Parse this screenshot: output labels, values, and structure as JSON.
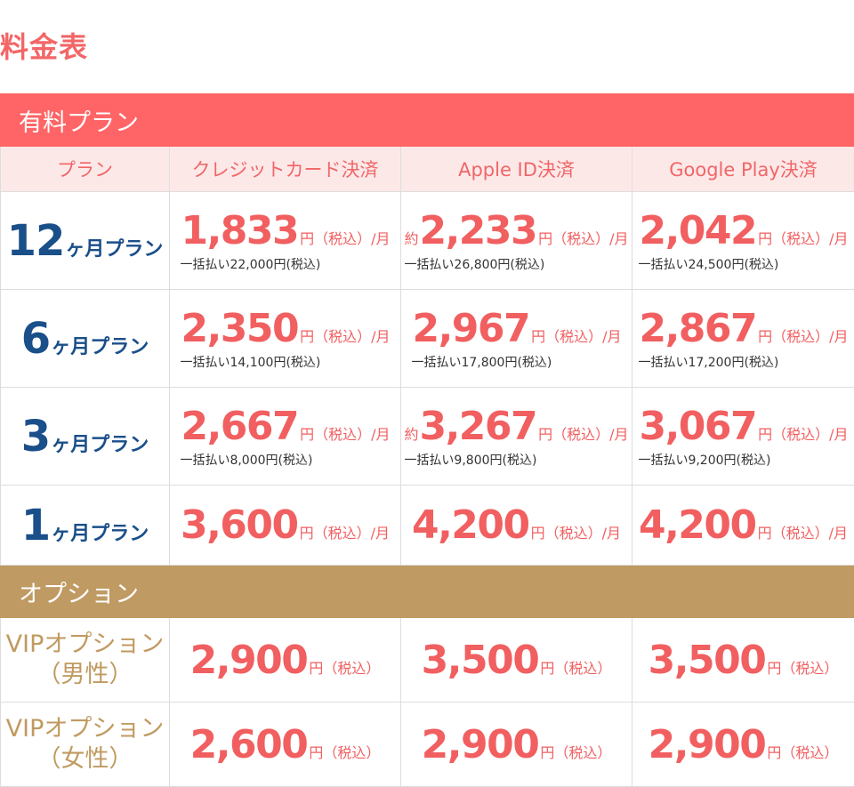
{
  "page": {
    "title": "料金表"
  },
  "paid_section": {
    "label": "有料プラン"
  },
  "columns": [
    "プラン",
    "クレジットカード決済",
    "Apple ID決済",
    "Google Play決済"
  ],
  "plans": [
    {
      "number": "12",
      "unit": "ヶ月プラン",
      "prices": [
        {
          "approx": "",
          "amount": "1,833",
          "unit": "円（税込）/月",
          "lump": "一括払い22,000円(税込)"
        },
        {
          "approx": "約",
          "amount": "2,233",
          "unit": "円（税込）/月",
          "lump": "一括払い26,800円(税込)"
        },
        {
          "approx": "",
          "amount": "2,042",
          "unit": "円（税込）/月",
          "lump": "一括払い24,500円(税込)"
        }
      ]
    },
    {
      "number": "6",
      "unit": "ヶ月プラン",
      "prices": [
        {
          "approx": "",
          "amount": "2,350",
          "unit": "円（税込）/月",
          "lump": "一括払い14,100円(税込)"
        },
        {
          "approx": "",
          "amount": "2,967",
          "unit": "円（税込）/月",
          "lump": "一括払い17,800円(税込)"
        },
        {
          "approx": "",
          "amount": "2,867",
          "unit": "円（税込）/月",
          "lump": "一括払い17,200円(税込)"
        }
      ]
    },
    {
      "number": "3",
      "unit": "ヶ月プラン",
      "prices": [
        {
          "approx": "",
          "amount": "2,667",
          "unit": "円（税込）/月",
          "lump": "一括払い8,000円(税込)"
        },
        {
          "approx": "約",
          "amount": "3,267",
          "unit": "円（税込）/月",
          "lump": "一括払い9,800円(税込)"
        },
        {
          "approx": "",
          "amount": "3,067",
          "unit": "円（税込）/月",
          "lump": "一括払い9,200円(税込)"
        }
      ]
    },
    {
      "number": "1",
      "unit": "ヶ月プラン",
      "prices": [
        {
          "approx": "",
          "amount": "3,600",
          "unit": "円（税込）/月",
          "lump": ""
        },
        {
          "approx": "",
          "amount": "4,200",
          "unit": "円（税込）/月",
          "lump": ""
        },
        {
          "approx": "",
          "amount": "4,200",
          "unit": "円（税込）/月",
          "lump": ""
        }
      ]
    }
  ],
  "option_section": {
    "label": "オプション"
  },
  "options": [
    {
      "name_line1": "VIPオプション",
      "name_line2": "（男性）",
      "prices": [
        {
          "amount": "2,900",
          "unit": "円（税込）"
        },
        {
          "amount": "3,500",
          "unit": "円（税込）"
        },
        {
          "amount": "3,500",
          "unit": "円（税込）"
        }
      ]
    },
    {
      "name_line1": "VIPオプション",
      "name_line2": "（女性）",
      "prices": [
        {
          "amount": "2,600",
          "unit": "円（税込）"
        },
        {
          "amount": "2,900",
          "unit": "円（税込）"
        },
        {
          "amount": "2,900",
          "unit": "円（税込）"
        }
      ]
    }
  ],
  "colors": {
    "title": "#f26667",
    "paid_header": "#ff6566",
    "option_header": "#bf9a62",
    "column_header_bg": "#fde8e8",
    "plan_name": "#1a4f8a",
    "price": "#f15f60"
  }
}
